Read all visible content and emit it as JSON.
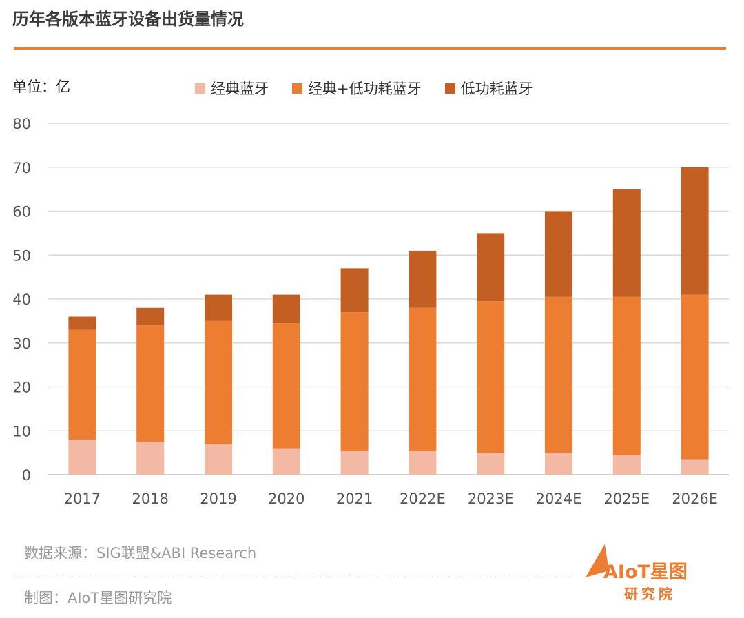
{
  "header": {
    "title": "历年各版本蓝牙设备出货量情况",
    "unit_label": "单位：亿"
  },
  "colors": {
    "accent": "#ed7d31",
    "classic": "#f4b9a4",
    "dual": "#ed7d31",
    "low_energy": "#c35f22",
    "grid": "#d9d9d9",
    "axis_text": "#555555"
  },
  "chart_data": {
    "type": "bar",
    "stacked": true,
    "categories": [
      "2017",
      "2018",
      "2019",
      "2020",
      "2021",
      "2022E",
      "2023E",
      "2024E",
      "2025E",
      "2026E"
    ],
    "series": [
      {
        "name": "经典蓝牙",
        "values": [
          8,
          7.5,
          7,
          6,
          5.5,
          5.5,
          5,
          5,
          4.5,
          3.5
        ]
      },
      {
        "name": "经典+低功耗蓝牙",
        "values": [
          25,
          26.5,
          28,
          28.5,
          31.5,
          32.5,
          34.5,
          35.5,
          36,
          37.5
        ]
      },
      {
        "name": "低功耗蓝牙",
        "values": [
          3,
          4,
          6,
          6.5,
          10,
          13,
          15.5,
          19.5,
          24.5,
          29
        ]
      }
    ],
    "yticks": [
      "0",
      "10",
      "20",
      "30",
      "40",
      "50",
      "60",
      "70",
      "80"
    ],
    "ylim": [
      0,
      80
    ],
    "grid": true,
    "legend_position": "top"
  },
  "footer": {
    "source": "数据来源：SIG联盟&ABI Research",
    "credit": "制图：AIoT星图研究院",
    "logo_text": "AIoT星图",
    "logo_sub": "研究院"
  }
}
